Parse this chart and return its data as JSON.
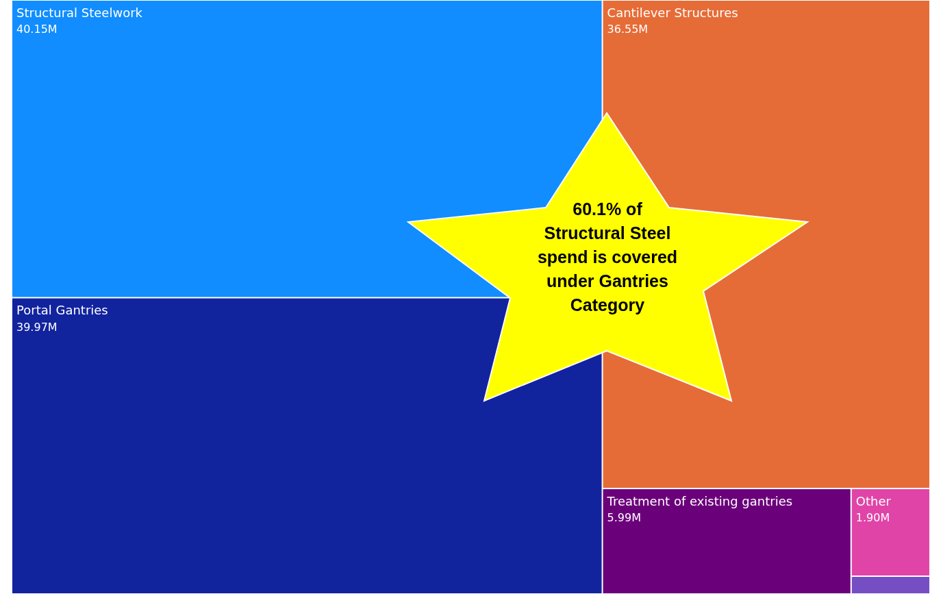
{
  "chart_data": {
    "type": "other",
    "categories": [
      "Structural Steelwork",
      "Portal Gantries",
      "Cantilever Structures",
      "Treatment of existing gantries",
      "Other",
      null
    ],
    "values": [
      40.15,
      39.97,
      36.55,
      5.99,
      1.9,
      null
    ],
    "value_labels": [
      "40.15M",
      "39.97M",
      "36.55M",
      "5.99M",
      "1.90M",
      null
    ],
    "colors": [
      "#118dff",
      "#12239e",
      "#e66c37",
      "#6b007b",
      "#e044a7",
      "#744ec2"
    ],
    "annotations": [
      "60.1% of Structural Steel spend is covered under Gantries Category"
    ]
  }
}
